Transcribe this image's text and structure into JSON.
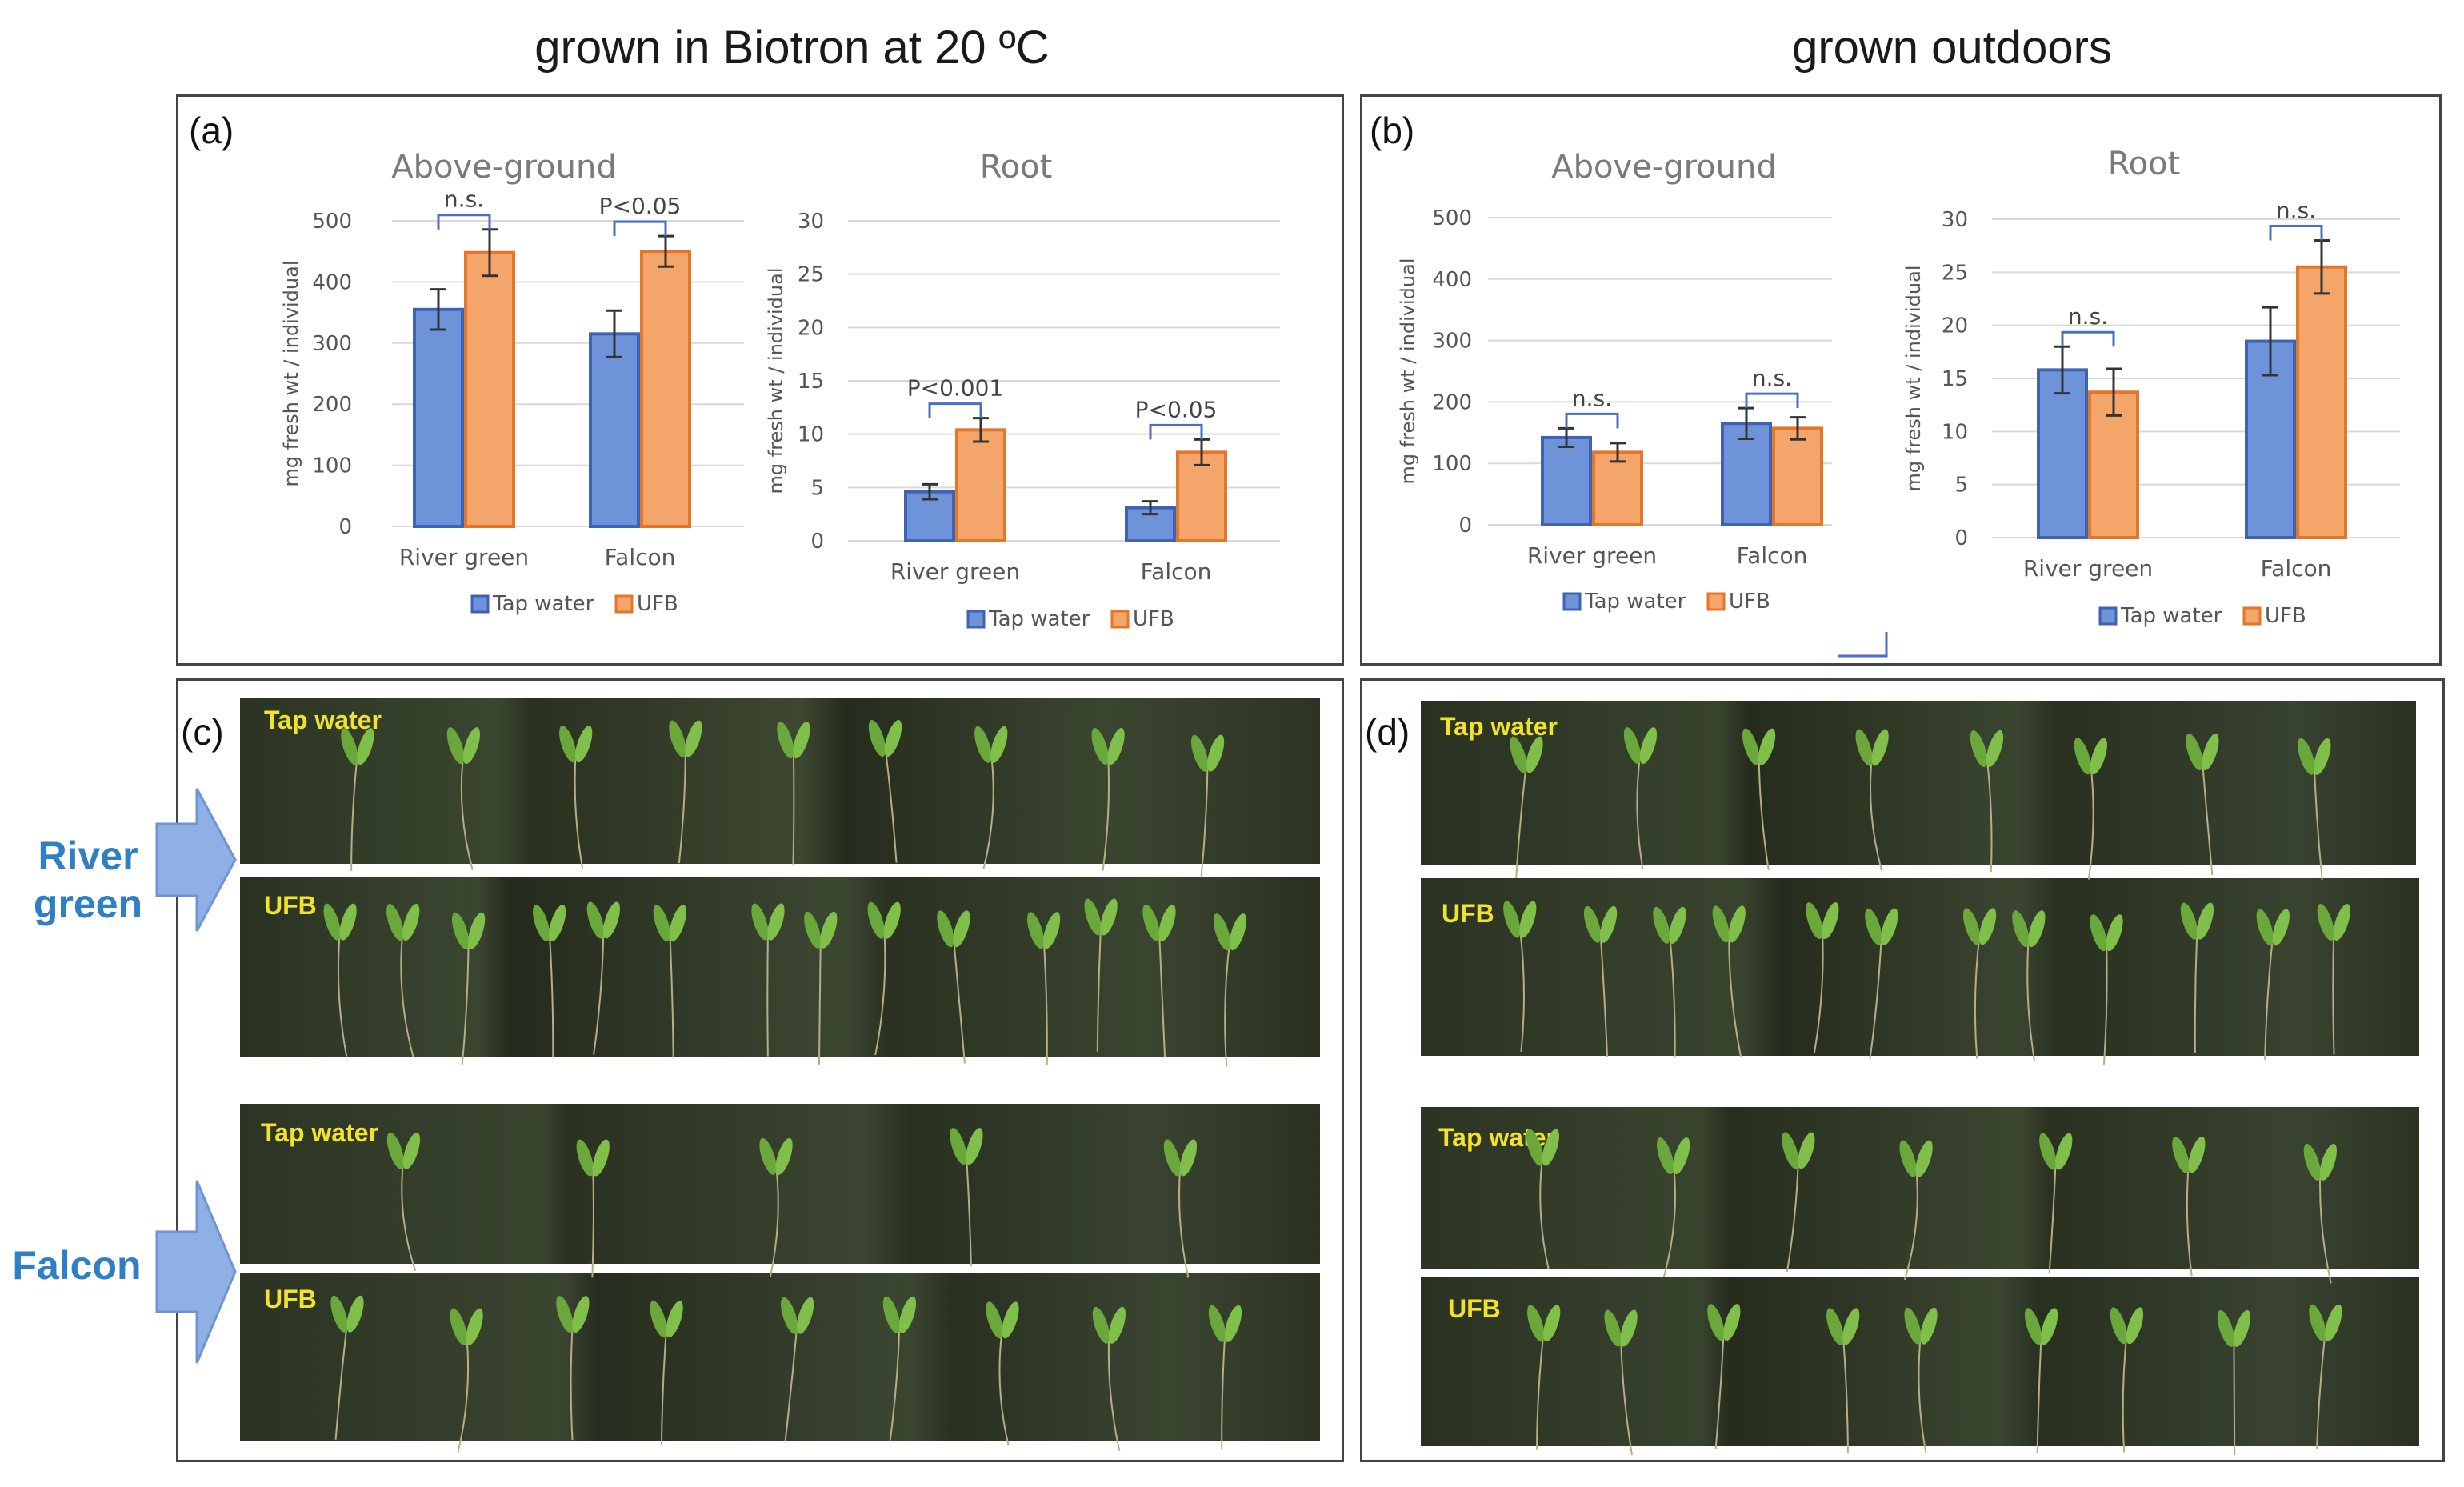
{
  "headings": {
    "left": "grown in Biotron at 20 ºC",
    "right": "grown outdoors"
  },
  "panels": {
    "a": "(a)",
    "b": "(b)",
    "c": "(c)",
    "d": "(d)"
  },
  "legend": {
    "tap": "Tap water",
    "ufb": "UFB"
  },
  "colors": {
    "tap_fill": "#6f93d8",
    "tap_stroke": "#3f62b2",
    "ufb_fill": "#f4a66a",
    "ufb_stroke": "#e2772b",
    "bracket": "#4a6fc0",
    "variety_label": "#2f7fc4",
    "arrow_fill": "#8fb0e4",
    "photo_label": "#f2e22a"
  },
  "photos": {
    "c_river_tap": "Tap water",
    "c_river_ufb": "UFB",
    "c_falcon_tap": "Tap water",
    "c_falcon_ufb": "UFB",
    "d_river_tap": "Tap water",
    "d_river_ufb": "UFB",
    "d_falcon_tap": "Tap water",
    "d_falcon_ufb": "UFB"
  },
  "varieties": {
    "river": "River green",
    "falcon": "Falcon"
  },
  "chart_data": [
    {
      "id": "a-above",
      "type": "bar",
      "title": "Above-ground",
      "ylabel": "mg fresh wt / individual",
      "ylim": [
        0,
        500
      ],
      "yticks": [
        "0",
        "100",
        "200",
        "300",
        "400",
        "500"
      ],
      "categories": [
        "River green",
        "Falcon"
      ],
      "series": [
        {
          "name": "Tap water",
          "values": [
            355,
            315
          ],
          "errors": [
            33,
            38
          ]
        },
        {
          "name": "UFB",
          "values": [
            448,
            450
          ],
          "errors": [
            38,
            25
          ]
        }
      ],
      "annotations": [
        "n.s.",
        "P<0.05"
      ],
      "grid": true,
      "legend": "bottom"
    },
    {
      "id": "a-root",
      "type": "bar",
      "title": "Root",
      "ylabel": "mg fresh wt / individual",
      "ylim": [
        0,
        30
      ],
      "yticks": [
        "0",
        "5",
        "10",
        "15",
        "20",
        "25",
        "30"
      ],
      "categories": [
        "River green",
        "Falcon"
      ],
      "series": [
        {
          "name": "Tap water",
          "values": [
            4.6,
            3.1
          ],
          "errors": [
            0.7,
            0.6
          ]
        },
        {
          "name": "UFB",
          "values": [
            10.4,
            8.3
          ],
          "errors": [
            1.1,
            1.2
          ]
        }
      ],
      "annotations": [
        "P<0.001",
        "P<0.05"
      ],
      "grid": true,
      "legend": "bottom"
    },
    {
      "id": "b-above",
      "type": "bar",
      "title": "Above-ground",
      "ylabel": "mg fresh wt / individual",
      "ylim": [
        0,
        500
      ],
      "yticks": [
        "0",
        "100",
        "200",
        "300",
        "400",
        "500"
      ],
      "categories": [
        "River green",
        "Falcon"
      ],
      "series": [
        {
          "name": "Tap water",
          "values": [
            142,
            165
          ],
          "errors": [
            15,
            25
          ]
        },
        {
          "name": "UFB",
          "values": [
            118,
            157
          ],
          "errors": [
            15,
            18
          ]
        }
      ],
      "annotations": [
        "n.s.",
        "n.s."
      ],
      "grid": true,
      "legend": "bottom"
    },
    {
      "id": "b-root",
      "type": "bar",
      "title": "Root",
      "ylabel": "mg fresh wt / individual",
      "ylim": [
        0,
        30
      ],
      "yticks": [
        "0",
        "5",
        "10",
        "15",
        "20",
        "25",
        "30"
      ],
      "categories": [
        "River green",
        "Falcon"
      ],
      "series": [
        {
          "name": "Tap water",
          "values": [
            15.8,
            18.5
          ],
          "errors": [
            2.2,
            3.2
          ]
        },
        {
          "name": "UFB",
          "values": [
            13.7,
            25.5
          ],
          "errors": [
            2.2,
            2.5
          ]
        }
      ],
      "annotations": [
        "n.s.",
        "n.s."
      ],
      "grid": true,
      "legend": "bottom"
    }
  ]
}
